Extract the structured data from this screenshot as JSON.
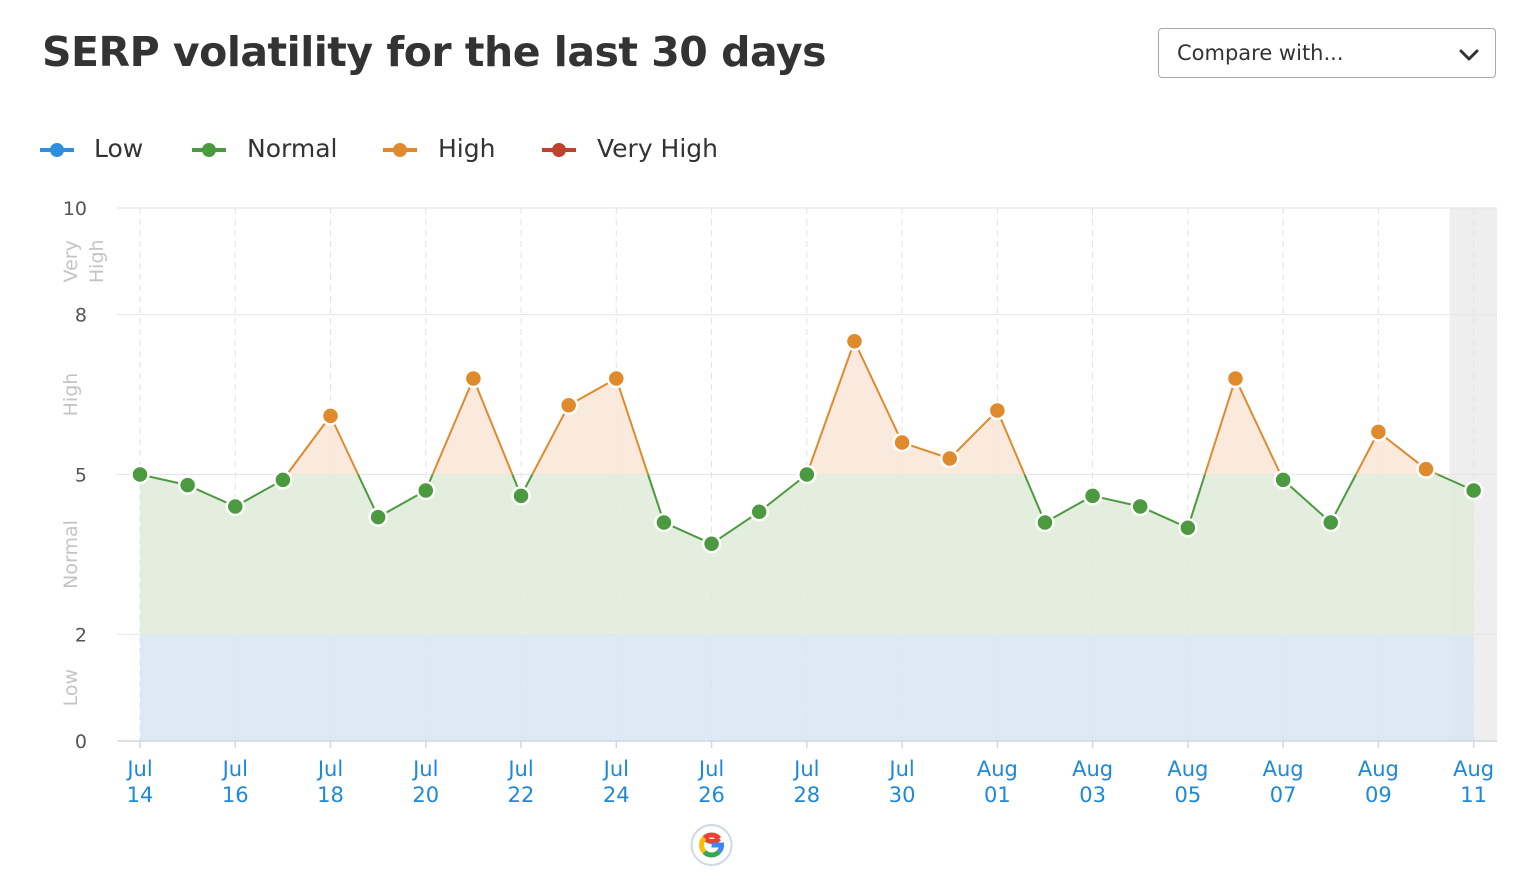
{
  "header": {
    "title": "SERP volatility for the last 30 days",
    "compare_label": "Compare with..."
  },
  "legend": [
    {
      "label": "Low",
      "color": "#2f8fdf"
    },
    {
      "label": "Normal",
      "color": "#4c9a3f"
    },
    {
      "label": "High",
      "color": "#e08a2e"
    },
    {
      "label": "Very High",
      "color": "#c0412d"
    }
  ],
  "chart_data": {
    "type": "line",
    "title": "SERP volatility for the last 30 days",
    "ylim": [
      0,
      10
    ],
    "yticks": [
      0,
      2,
      5,
      8,
      10
    ],
    "bands": [
      {
        "label": "Low",
        "from": 0,
        "to": 2,
        "color": "#d8e6f4"
      },
      {
        "label": "Normal",
        "from": 2,
        "to": 5,
        "color": "#dfecd9"
      },
      {
        "label": "High",
        "from": 5,
        "to": 8,
        "color": "#f9e5d8"
      },
      {
        "label": "Very High",
        "from": 8,
        "to": 10,
        "color": "#f8e0dc"
      }
    ],
    "band_labels": [
      {
        "text": "Low",
        "mid": 1
      },
      {
        "text": "Normal",
        "mid": 3.5
      },
      {
        "text": "High",
        "mid": 6.5
      },
      {
        "text": "Very High",
        "mid": 9
      }
    ],
    "x_labels": [
      [
        "Jul",
        "14"
      ],
      [
        "Jul",
        "16"
      ],
      [
        "Jul",
        "18"
      ],
      [
        "Jul",
        "20"
      ],
      [
        "Jul",
        "22"
      ],
      [
        "Jul",
        "24"
      ],
      [
        "Jul",
        "26"
      ],
      [
        "Jul",
        "28"
      ],
      [
        "Jul",
        "30"
      ],
      [
        "Aug",
        "01"
      ],
      [
        "Aug",
        "03"
      ],
      [
        "Aug",
        "05"
      ],
      [
        "Aug",
        "07"
      ],
      [
        "Aug",
        "09"
      ],
      [
        "Aug",
        "11"
      ]
    ],
    "x": [
      "Jul 14",
      "Jul 15",
      "Jul 16",
      "Jul 17",
      "Jul 18",
      "Jul 19",
      "Jul 20",
      "Jul 21",
      "Jul 22",
      "Jul 23",
      "Jul 24",
      "Jul 25",
      "Jul 26",
      "Jul 27",
      "Jul 28",
      "Jul 29",
      "Jul 30",
      "Jul 31",
      "Aug 01",
      "Aug 02",
      "Aug 03",
      "Aug 04",
      "Aug 05",
      "Aug 06",
      "Aug 07",
      "Aug 08",
      "Aug 09",
      "Aug 10",
      "Aug 11"
    ],
    "series": [
      {
        "values": [
          5.0,
          4.8,
          4.4,
          4.9,
          6.1,
          4.2,
          4.7,
          6.8,
          4.6,
          6.3,
          6.8,
          4.1,
          3.7,
          4.3,
          5.0,
          7.5,
          5.6,
          5.3,
          6.2,
          4.1,
          4.6,
          4.4,
          4.0,
          6.8,
          4.9,
          4.1,
          5.8,
          5.1,
          4.7
        ]
      }
    ],
    "google_update_date": "Jul 26",
    "highlighted_date": "Aug 11",
    "grid": true
  }
}
